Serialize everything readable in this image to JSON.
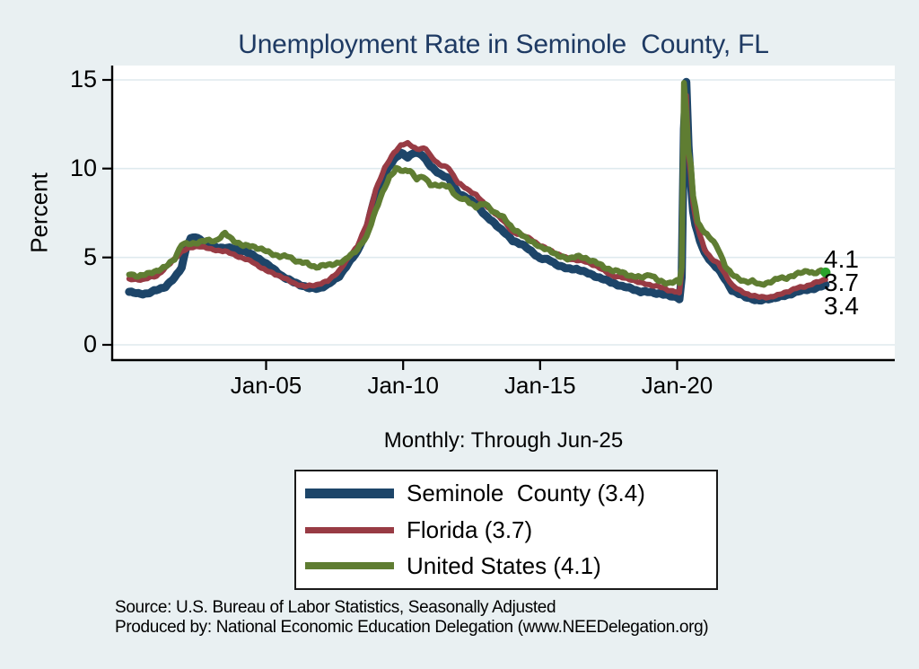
{
  "title": "Unemployment Rate in Seminole  County, FL",
  "subtitle": "Monthly: Through Jun-25",
  "source": {
    "line1": "Source: U.S. Bureau of Labor Statistics, Seasonally Adjusted",
    "line2": "Produced by: National Economic Education Delegation (www.NEEDelegation.org)"
  },
  "colors": {
    "title": "#1e3a63",
    "background": "#e9f0f2",
    "plot_background": "#ffffff",
    "gridline": "#dfeaee",
    "axis": "#000000",
    "seminole_blue": "#1d4569",
    "florida_red": "#983b44",
    "us_green": "#5f7d32",
    "end_dot_green": "#2aa22a"
  },
  "chart_data": {
    "type": "line",
    "title": "Unemployment Rate in Seminole  County, FL",
    "subtitle": "Monthly: Through Jun-25",
    "xlabel": "",
    "ylabel": "Percent",
    "ylim": [
      0,
      15
    ],
    "yticks": [
      0,
      5,
      10,
      15
    ],
    "ytick_labels": [
      "0",
      "5",
      "10",
      "15"
    ],
    "xticks": [
      2005,
      2010,
      2015,
      2020
    ],
    "xtick_labels": [
      "Jan-05",
      "Jan-10",
      "Jan-15",
      "Jan-20"
    ],
    "x_range": [
      2000.0,
      2025.4167
    ],
    "grid": true,
    "legend_position": "bottom",
    "end_labels": [
      "4.1",
      "3.7",
      "3.4"
    ],
    "series": [
      {
        "name": "Seminole  County (3.4)",
        "color": "#1d4569",
        "width": 9,
        "legend_thickness": 11,
        "last_value": 3.4,
        "points": [
          [
            2000.0,
            3.0
          ],
          [
            2000.33,
            2.9
          ],
          [
            2000.67,
            2.9
          ],
          [
            2001.0,
            3.1
          ],
          [
            2001.33,
            3.3
          ],
          [
            2001.67,
            3.8
          ],
          [
            2001.92,
            4.4
          ],
          [
            2002.08,
            5.5
          ],
          [
            2002.25,
            6.0
          ],
          [
            2002.42,
            6.1
          ],
          [
            2002.67,
            5.9
          ],
          [
            2002.92,
            5.6
          ],
          [
            2003.25,
            5.5
          ],
          [
            2003.58,
            5.5
          ],
          [
            2003.92,
            5.4
          ],
          [
            2004.25,
            5.3
          ],
          [
            2004.58,
            5.0
          ],
          [
            2004.92,
            4.7
          ],
          [
            2005.25,
            4.3
          ],
          [
            2005.58,
            3.9
          ],
          [
            2005.92,
            3.6
          ],
          [
            2006.25,
            3.4
          ],
          [
            2006.58,
            3.2
          ],
          [
            2006.92,
            3.2
          ],
          [
            2007.25,
            3.4
          ],
          [
            2007.67,
            3.9
          ],
          [
            2008.0,
            4.6
          ],
          [
            2008.33,
            5.3
          ],
          [
            2008.67,
            6.5
          ],
          [
            2009.0,
            8.5
          ],
          [
            2009.33,
            9.7
          ],
          [
            2009.67,
            10.5
          ],
          [
            2009.92,
            10.9
          ],
          [
            2010.17,
            10.6
          ],
          [
            2010.42,
            10.9
          ],
          [
            2010.67,
            10.8
          ],
          [
            2011.0,
            10.1
          ],
          [
            2011.33,
            9.7
          ],
          [
            2011.67,
            9.4
          ],
          [
            2012.0,
            8.6
          ],
          [
            2012.33,
            8.3
          ],
          [
            2012.67,
            8.0
          ],
          [
            2013.0,
            7.3
          ],
          [
            2013.33,
            6.9
          ],
          [
            2013.67,
            6.4
          ],
          [
            2014.0,
            5.9
          ],
          [
            2014.33,
            5.7
          ],
          [
            2014.67,
            5.3
          ],
          [
            2015.0,
            4.9
          ],
          [
            2015.33,
            4.8
          ],
          [
            2015.67,
            4.5
          ],
          [
            2016.0,
            4.3
          ],
          [
            2016.33,
            4.3
          ],
          [
            2016.67,
            4.1
          ],
          [
            2017.0,
            3.9
          ],
          [
            2017.33,
            3.7
          ],
          [
            2017.67,
            3.5
          ],
          [
            2018.0,
            3.3
          ],
          [
            2018.33,
            3.2
          ],
          [
            2018.67,
            3.0
          ],
          [
            2019.0,
            3.0
          ],
          [
            2019.33,
            2.9
          ],
          [
            2019.67,
            2.8
          ],
          [
            2020.0,
            2.7
          ],
          [
            2020.0833,
            2.6
          ],
          [
            2020.1667,
            3.8
          ],
          [
            2020.25,
            12.2
          ],
          [
            2020.3333,
            14.9
          ],
          [
            2020.4167,
            11.2
          ],
          [
            2020.5,
            9.2
          ],
          [
            2020.5833,
            7.6
          ],
          [
            2020.6667,
            6.8
          ],
          [
            2020.8333,
            5.9
          ],
          [
            2021.0,
            5.2
          ],
          [
            2021.25,
            4.7
          ],
          [
            2021.5,
            4.3
          ],
          [
            2021.75,
            3.7
          ],
          [
            2022.0,
            3.1
          ],
          [
            2022.25,
            2.9
          ],
          [
            2022.5,
            2.7
          ],
          [
            2022.75,
            2.6
          ],
          [
            2023.0,
            2.5
          ],
          [
            2023.33,
            2.6
          ],
          [
            2023.67,
            2.7
          ],
          [
            2024.0,
            2.8
          ],
          [
            2024.33,
            3.0
          ],
          [
            2024.67,
            3.1
          ],
          [
            2025.0,
            3.2
          ],
          [
            2025.25,
            3.3
          ],
          [
            2025.4167,
            3.4
          ]
        ]
      },
      {
        "name": "Florida (3.7)",
        "color": "#983b44",
        "width": 6,
        "legend_thickness": 7,
        "last_value": 3.7,
        "points": [
          [
            2000.0,
            3.7
          ],
          [
            2000.5,
            3.7
          ],
          [
            2001.0,
            3.9
          ],
          [
            2001.5,
            4.6
          ],
          [
            2001.92,
            5.3
          ],
          [
            2002.25,
            5.5
          ],
          [
            2002.58,
            5.6
          ],
          [
            2003.0,
            5.4
          ],
          [
            2003.5,
            5.3
          ],
          [
            2004.0,
            5.0
          ],
          [
            2004.5,
            4.7
          ],
          [
            2005.0,
            4.2
          ],
          [
            2005.5,
            3.9
          ],
          [
            2006.0,
            3.5
          ],
          [
            2006.42,
            3.3
          ],
          [
            2006.83,
            3.4
          ],
          [
            2007.25,
            3.6
          ],
          [
            2007.67,
            4.2
          ],
          [
            2008.0,
            4.9
          ],
          [
            2008.33,
            5.6
          ],
          [
            2008.67,
            6.8
          ],
          [
            2009.0,
            8.8
          ],
          [
            2009.33,
            10.0
          ],
          [
            2009.67,
            10.9
          ],
          [
            2009.92,
            11.3
          ],
          [
            2010.17,
            11.4
          ],
          [
            2010.5,
            11.1
          ],
          [
            2010.83,
            11.1
          ],
          [
            2011.0,
            10.7
          ],
          [
            2011.33,
            10.2
          ],
          [
            2011.67,
            10.0
          ],
          [
            2012.0,
            9.2
          ],
          [
            2012.33,
            8.8
          ],
          [
            2012.67,
            8.5
          ],
          [
            2013.0,
            7.9
          ],
          [
            2013.33,
            7.5
          ],
          [
            2013.67,
            7.0
          ],
          [
            2014.0,
            6.4
          ],
          [
            2014.33,
            6.2
          ],
          [
            2014.67,
            6.0
          ],
          [
            2015.0,
            5.6
          ],
          [
            2015.33,
            5.4
          ],
          [
            2015.67,
            5.1
          ],
          [
            2016.0,
            4.9
          ],
          [
            2016.33,
            4.8
          ],
          [
            2016.67,
            4.7
          ],
          [
            2017.0,
            4.5
          ],
          [
            2017.33,
            4.2
          ],
          [
            2017.67,
            3.9
          ],
          [
            2018.0,
            3.8
          ],
          [
            2018.33,
            3.7
          ],
          [
            2018.67,
            3.5
          ],
          [
            2019.0,
            3.4
          ],
          [
            2019.33,
            3.3
          ],
          [
            2019.67,
            3.1
          ],
          [
            2020.0,
            3.0
          ],
          [
            2020.0833,
            2.9
          ],
          [
            2020.1667,
            4.2
          ],
          [
            2020.25,
            12.8
          ],
          [
            2020.3333,
            14.1
          ],
          [
            2020.4167,
            10.8
          ],
          [
            2020.5,
            9.6
          ],
          [
            2020.5833,
            8.0
          ],
          [
            2020.6667,
            7.2
          ],
          [
            2020.8333,
            6.2
          ],
          [
            2021.0,
            5.4
          ],
          [
            2021.25,
            4.9
          ],
          [
            2021.5,
            4.6
          ],
          [
            2021.75,
            4.0
          ],
          [
            2022.0,
            3.4
          ],
          [
            2022.25,
            3.1
          ],
          [
            2022.5,
            2.9
          ],
          [
            2022.75,
            2.8
          ],
          [
            2023.0,
            2.7
          ],
          [
            2023.33,
            2.7
          ],
          [
            2023.67,
            2.8
          ],
          [
            2024.0,
            3.0
          ],
          [
            2024.33,
            3.2
          ],
          [
            2024.67,
            3.3
          ],
          [
            2025.0,
            3.5
          ],
          [
            2025.25,
            3.6
          ],
          [
            2025.4167,
            3.7
          ]
        ]
      },
      {
        "name": "United States (4.1)",
        "color": "#5f7d32",
        "width": 6.5,
        "legend_thickness": 8,
        "last_value": 4.1,
        "end_dot": true,
        "end_dot_color": "#2aa22a",
        "points": [
          [
            2000.0,
            4.0
          ],
          [
            2000.33,
            3.9
          ],
          [
            2000.67,
            4.0
          ],
          [
            2001.0,
            4.2
          ],
          [
            2001.33,
            4.4
          ],
          [
            2001.67,
            4.9
          ],
          [
            2001.92,
            5.7
          ],
          [
            2002.17,
            5.7
          ],
          [
            2002.5,
            5.8
          ],
          [
            2002.83,
            5.9
          ],
          [
            2003.17,
            5.9
          ],
          [
            2003.5,
            6.3
          ],
          [
            2003.83,
            5.9
          ],
          [
            2004.17,
            5.6
          ],
          [
            2004.5,
            5.6
          ],
          [
            2004.83,
            5.4
          ],
          [
            2005.17,
            5.2
          ],
          [
            2005.5,
            5.0
          ],
          [
            2005.83,
            5.0
          ],
          [
            2006.17,
            4.7
          ],
          [
            2006.5,
            4.6
          ],
          [
            2006.83,
            4.4
          ],
          [
            2007.17,
            4.5
          ],
          [
            2007.5,
            4.6
          ],
          [
            2007.83,
            4.7
          ],
          [
            2008.0,
            5.0
          ],
          [
            2008.33,
            5.4
          ],
          [
            2008.67,
            6.1
          ],
          [
            2008.92,
            7.3
          ],
          [
            2009.17,
            8.3
          ],
          [
            2009.5,
            9.5
          ],
          [
            2009.75,
            10.0
          ],
          [
            2010.0,
            9.8
          ],
          [
            2010.25,
            9.9
          ],
          [
            2010.5,
            9.4
          ],
          [
            2010.75,
            9.5
          ],
          [
            2011.0,
            9.1
          ],
          [
            2011.33,
            9.0
          ],
          [
            2011.67,
            9.0
          ],
          [
            2012.0,
            8.3
          ],
          [
            2012.33,
            8.2
          ],
          [
            2012.67,
            7.8
          ],
          [
            2013.0,
            8.0
          ],
          [
            2013.33,
            7.5
          ],
          [
            2013.67,
            7.2
          ],
          [
            2014.0,
            6.6
          ],
          [
            2014.33,
            6.2
          ],
          [
            2014.67,
            5.9
          ],
          [
            2015.0,
            5.5
          ],
          [
            2015.33,
            5.4
          ],
          [
            2015.67,
            5.0
          ],
          [
            2016.0,
            4.9
          ],
          [
            2016.33,
            5.0
          ],
          [
            2016.67,
            4.9
          ],
          [
            2017.0,
            4.7
          ],
          [
            2017.33,
            4.4
          ],
          [
            2017.67,
            4.2
          ],
          [
            2018.0,
            4.1
          ],
          [
            2018.33,
            3.9
          ],
          [
            2018.67,
            3.8
          ],
          [
            2019.0,
            4.0
          ],
          [
            2019.33,
            3.6
          ],
          [
            2019.67,
            3.5
          ],
          [
            2020.0,
            3.6
          ],
          [
            2020.0833,
            3.5
          ],
          [
            2020.1667,
            4.4
          ],
          [
            2020.25,
            14.8
          ],
          [
            2020.3333,
            13.2
          ],
          [
            2020.4167,
            11.0
          ],
          [
            2020.5,
            10.2
          ],
          [
            2020.5833,
            8.4
          ],
          [
            2020.6667,
            7.8
          ],
          [
            2020.75,
            6.9
          ],
          [
            2020.8333,
            6.7
          ],
          [
            2021.0,
            6.4
          ],
          [
            2021.25,
            6.0
          ],
          [
            2021.5,
            5.4
          ],
          [
            2021.75,
            4.5
          ],
          [
            2022.0,
            4.0
          ],
          [
            2022.25,
            3.7
          ],
          [
            2022.5,
            3.6
          ],
          [
            2022.75,
            3.6
          ],
          [
            2023.0,
            3.4
          ],
          [
            2023.25,
            3.5
          ],
          [
            2023.5,
            3.6
          ],
          [
            2023.75,
            3.8
          ],
          [
            2024.0,
            3.8
          ],
          [
            2024.25,
            3.9
          ],
          [
            2024.5,
            4.1
          ],
          [
            2024.75,
            4.2
          ],
          [
            2025.0,
            4.0
          ],
          [
            2025.25,
            4.2
          ],
          [
            2025.4167,
            4.1
          ]
        ]
      }
    ]
  }
}
